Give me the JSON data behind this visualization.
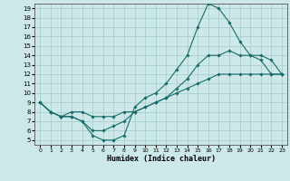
{
  "title": "",
  "xlabel": "Humidex (Indice chaleur)",
  "bg_color": "#cce8e8",
  "line_color": "#1a6b6b",
  "grid_color": "#aacfcf",
  "xlim": [
    -0.5,
    23.5
  ],
  "ylim": [
    4.5,
    19.5
  ],
  "yticks": [
    5,
    6,
    7,
    8,
    9,
    10,
    11,
    12,
    13,
    14,
    15,
    16,
    17,
    18,
    19
  ],
  "xticks": [
    0,
    1,
    2,
    3,
    4,
    5,
    6,
    7,
    8,
    9,
    10,
    11,
    12,
    13,
    14,
    15,
    16,
    17,
    18,
    19,
    20,
    21,
    22,
    23
  ],
  "series1_x": [
    0,
    1,
    2,
    3,
    4,
    5,
    6,
    7,
    8,
    9,
    10,
    11,
    12,
    13,
    14,
    15,
    16,
    17,
    18,
    19,
    20,
    21,
    22,
    23
  ],
  "series1_y": [
    9,
    8,
    7.5,
    7.5,
    7,
    5.5,
    5,
    5,
    5.5,
    8.5,
    9.5,
    10,
    11,
    12.5,
    14,
    17,
    19.5,
    19,
    17.5,
    15.5,
    14,
    14,
    13.5,
    12
  ],
  "series2_x": [
    0,
    1,
    2,
    3,
    4,
    5,
    6,
    7,
    8,
    9,
    10,
    11,
    12,
    13,
    14,
    15,
    16,
    17,
    18,
    19,
    20,
    21,
    22,
    23
  ],
  "series2_y": [
    9,
    8,
    7.5,
    7.5,
    7,
    6,
    6,
    6.5,
    7,
    8,
    8.5,
    9,
    9.5,
    10.5,
    11.5,
    13,
    14,
    14,
    14.5,
    14,
    14,
    13.5,
    12,
    12
  ],
  "series3_x": [
    0,
    1,
    2,
    3,
    4,
    5,
    6,
    7,
    8,
    9,
    10,
    11,
    12,
    13,
    14,
    15,
    16,
    17,
    18,
    19,
    20,
    21,
    22,
    23
  ],
  "series3_y": [
    9,
    8,
    7.5,
    8,
    8,
    7.5,
    7.5,
    7.5,
    8,
    8,
    8.5,
    9,
    9.5,
    10,
    10.5,
    11,
    11.5,
    12,
    12,
    12,
    12,
    12,
    12,
    12
  ]
}
